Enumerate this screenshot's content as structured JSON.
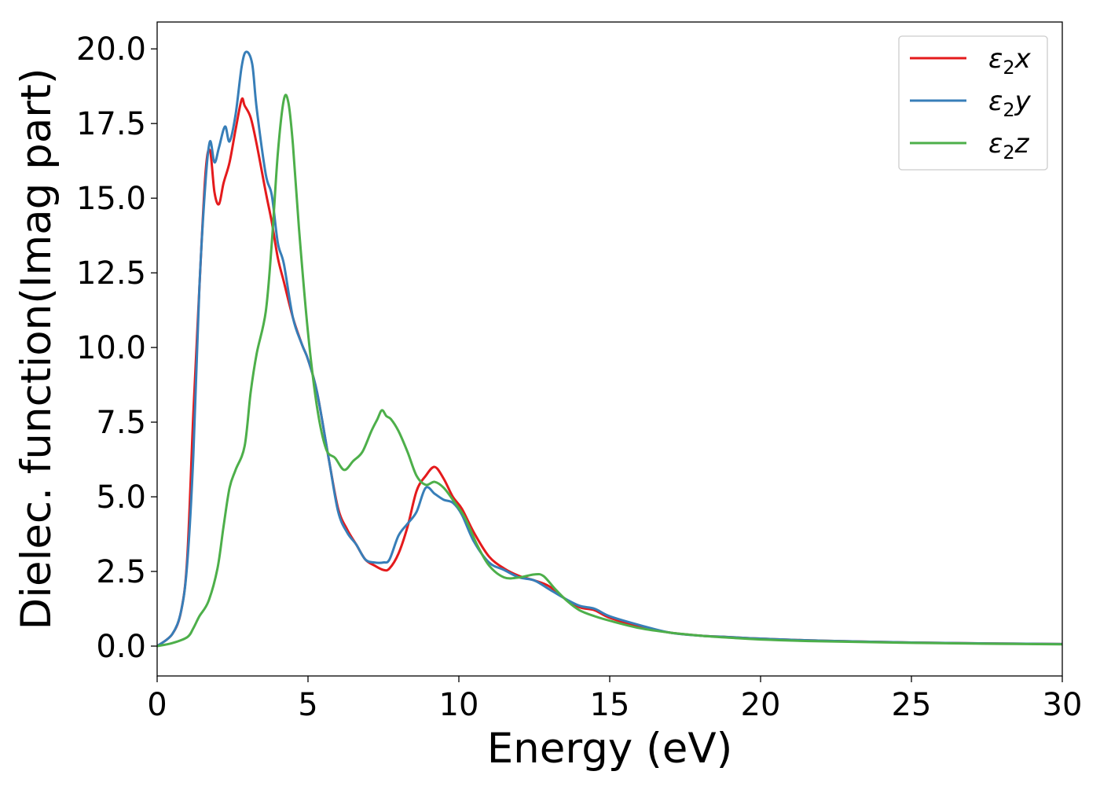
{
  "chart_data": {
    "type": "line",
    "xlabel": "Energy (eV)",
    "ylabel": "Dielec. function(Imag part)",
    "xlim": [
      0,
      30
    ],
    "ylim": [
      -1.0,
      20.9
    ],
    "xticks": [
      0,
      5,
      10,
      15,
      20,
      25,
      30
    ],
    "xtick_labels": [
      "0",
      "5",
      "10",
      "15",
      "20",
      "25",
      "30"
    ],
    "yticks": [
      0.0,
      2.5,
      5.0,
      7.5,
      10.0,
      12.5,
      15.0,
      17.5,
      20.0
    ],
    "ytick_labels": [
      "0.0",
      "2.5",
      "5.0",
      "7.5",
      "10.0",
      "12.5",
      "15.0",
      "17.5",
      "20.0"
    ],
    "grid": false,
    "legend_position": "top-right",
    "series": [
      {
        "name": "ε₂x",
        "legend": {
          "base": "ε",
          "sub": "2",
          "suffix": "x"
        },
        "color": "#e41a1c",
        "x": [
          0,
          0.5,
          0.8,
          1.0,
          1.2,
          1.4,
          1.6,
          1.75,
          1.9,
          2.05,
          2.2,
          2.4,
          2.6,
          2.8,
          2.9,
          3.1,
          3.3,
          3.6,
          3.8,
          4.0,
          4.2,
          4.5,
          4.8,
          5.0,
          5.3,
          5.7,
          6.0,
          6.3,
          6.6,
          6.9,
          7.2,
          7.5,
          7.7,
          8.0,
          8.3,
          8.6,
          8.9,
          9.2,
          9.5,
          9.8,
          10.1,
          10.5,
          11.0,
          11.5,
          12.0,
          12.5,
          13.0,
          13.5,
          14.0,
          14.5,
          15.0,
          16.0,
          17.0,
          18.0,
          19.0,
          20.0,
          22.0,
          25.0,
          27.5,
          30.0
        ],
        "y": [
          0.0,
          0.4,
          1.2,
          3.0,
          7.8,
          12.0,
          15.8,
          16.6,
          15.2,
          14.8,
          15.5,
          16.2,
          17.3,
          18.3,
          18.1,
          17.7,
          16.8,
          15.2,
          14.2,
          13.0,
          12.2,
          11.0,
          10.1,
          9.6,
          8.5,
          6.2,
          4.6,
          3.9,
          3.4,
          2.9,
          2.7,
          2.55,
          2.6,
          3.1,
          4.0,
          5.2,
          5.7,
          6.0,
          5.6,
          5.0,
          4.6,
          3.8,
          3.0,
          2.6,
          2.35,
          2.2,
          2.0,
          1.6,
          1.3,
          1.2,
          0.95,
          0.65,
          0.45,
          0.35,
          0.3,
          0.25,
          0.18,
          0.12,
          0.09,
          0.07
        ]
      },
      {
        "name": "ε₂y",
        "legend": {
          "base": "ε",
          "sub": "2",
          "suffix": "y"
        },
        "color": "#377eb8",
        "x": [
          0,
          0.5,
          0.8,
          1.0,
          1.2,
          1.4,
          1.6,
          1.75,
          1.9,
          2.05,
          2.25,
          2.4,
          2.6,
          2.8,
          2.95,
          3.15,
          3.3,
          3.6,
          3.8,
          4.0,
          4.2,
          4.5,
          4.8,
          5.0,
          5.3,
          5.7,
          6.0,
          6.3,
          6.6,
          6.9,
          7.2,
          7.5,
          7.7,
          8.0,
          8.3,
          8.6,
          8.9,
          9.2,
          9.5,
          9.8,
          10.1,
          10.5,
          11.0,
          11.5,
          12.0,
          12.5,
          13.0,
          13.5,
          14.0,
          14.5,
          15.0,
          16.0,
          17.0,
          18.0,
          19.0,
          20.0,
          22.0,
          25.0,
          27.5,
          30.0
        ],
        "y": [
          0.0,
          0.4,
          1.2,
          2.8,
          6.4,
          12.0,
          15.5,
          16.9,
          16.2,
          16.7,
          17.4,
          16.9,
          17.8,
          19.4,
          19.9,
          19.5,
          18.0,
          15.8,
          15.1,
          13.5,
          12.8,
          11.0,
          10.1,
          9.6,
          8.5,
          6.2,
          4.5,
          3.8,
          3.4,
          2.9,
          2.8,
          2.8,
          2.9,
          3.7,
          4.1,
          4.5,
          5.3,
          5.1,
          4.9,
          4.8,
          4.4,
          3.5,
          2.8,
          2.55,
          2.3,
          2.2,
          1.9,
          1.6,
          1.35,
          1.25,
          1.0,
          0.7,
          0.45,
          0.35,
          0.3,
          0.25,
          0.18,
          0.12,
          0.09,
          0.07
        ]
      },
      {
        "name": "ε₂z",
        "legend": {
          "base": "ε",
          "sub": "2",
          "suffix": "z"
        },
        "color": "#4daf4a",
        "x": [
          0,
          0.5,
          1.0,
          1.2,
          1.4,
          1.7,
          2.0,
          2.2,
          2.4,
          2.6,
          2.9,
          3.1,
          3.3,
          3.6,
          3.8,
          4.0,
          4.2,
          4.35,
          4.5,
          4.7,
          5.0,
          5.3,
          5.6,
          5.9,
          6.2,
          6.5,
          6.8,
          7.1,
          7.3,
          7.45,
          7.6,
          7.75,
          8.0,
          8.3,
          8.6,
          8.9,
          9.2,
          9.5,
          9.8,
          10.2,
          10.6,
          11.0,
          11.5,
          12.0,
          12.5,
          12.8,
          13.2,
          13.6,
          14.0,
          14.5,
          15.0,
          16.0,
          17.0,
          18.0,
          19.0,
          20.0,
          22.0,
          25.0,
          27.5,
          30.0
        ],
        "y": [
          0.0,
          0.1,
          0.3,
          0.6,
          1.0,
          1.5,
          2.6,
          4.0,
          5.3,
          5.9,
          6.7,
          8.5,
          9.8,
          11.2,
          13.5,
          16.5,
          18.3,
          18.2,
          16.8,
          14.0,
          10.5,
          8.0,
          6.6,
          6.3,
          5.9,
          6.2,
          6.5,
          7.2,
          7.6,
          7.9,
          7.7,
          7.6,
          7.2,
          6.5,
          5.7,
          5.4,
          5.5,
          5.3,
          4.9,
          4.3,
          3.4,
          2.7,
          2.3,
          2.3,
          2.4,
          2.35,
          1.9,
          1.5,
          1.2,
          1.0,
          0.85,
          0.6,
          0.45,
          0.35,
          0.28,
          0.22,
          0.16,
          0.11,
          0.08,
          0.06
        ]
      }
    ]
  }
}
